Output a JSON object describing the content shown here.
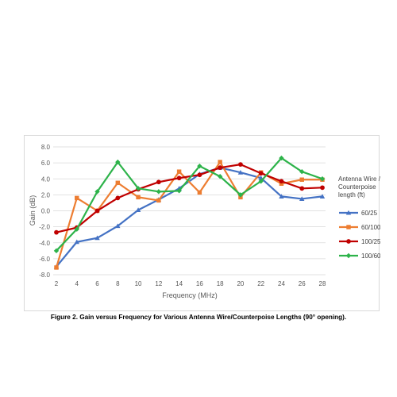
{
  "chart_data": {
    "type": "line",
    "title": "",
    "xlabel": "Frequency (MHz)",
    "ylabel": "Gain (dB)",
    "x": [
      2,
      4,
      6,
      8,
      10,
      12,
      14,
      16,
      18,
      20,
      22,
      24,
      26,
      28
    ],
    "ylim": [
      -8.0,
      8.0
    ],
    "yticks": [
      "8.0",
      "6.0",
      "4.0",
      "2.0",
      "0.0",
      "-2.0",
      "-4.0",
      "-6.0",
      "-8.0"
    ],
    "grid": "horizontal",
    "legend_title": [
      "Antenna Wire /",
      "Counterpoise",
      "length (ft)"
    ],
    "legend_position": "right",
    "series": [
      {
        "name": "60/25",
        "color": "#4472c4",
        "marker": "triangle",
        "values": [
          -7.0,
          -3.9,
          -3.4,
          -1.9,
          0.1,
          1.4,
          2.8,
          4.6,
          5.4,
          4.8,
          4.1,
          1.8,
          1.5,
          1.8
        ]
      },
      {
        "name": "60/100",
        "color": "#ed7d31",
        "marker": "square",
        "values": [
          -7.1,
          1.6,
          0.0,
          3.5,
          1.7,
          1.3,
          4.9,
          2.3,
          6.1,
          1.7,
          4.8,
          3.4,
          3.9,
          3.9
        ]
      },
      {
        "name": "100/25",
        "color": "#c00000",
        "marker": "circle",
        "values": [
          -2.7,
          -2.1,
          0.0,
          1.6,
          2.7,
          3.6,
          4.1,
          4.5,
          5.4,
          5.8,
          4.7,
          3.7,
          2.8,
          2.9
        ]
      },
      {
        "name": "100/60",
        "color": "#2db34a",
        "marker": "diamond",
        "values": [
          -5.0,
          -2.3,
          2.4,
          6.1,
          2.8,
          2.4,
          2.5,
          5.6,
          4.3,
          2.0,
          3.7,
          6.6,
          4.9,
          4.0
        ]
      }
    ]
  },
  "caption": "Figure 2. Gain versus Frequency for Various Antenna Wire/Counterpoise Lengths (90° opening)."
}
